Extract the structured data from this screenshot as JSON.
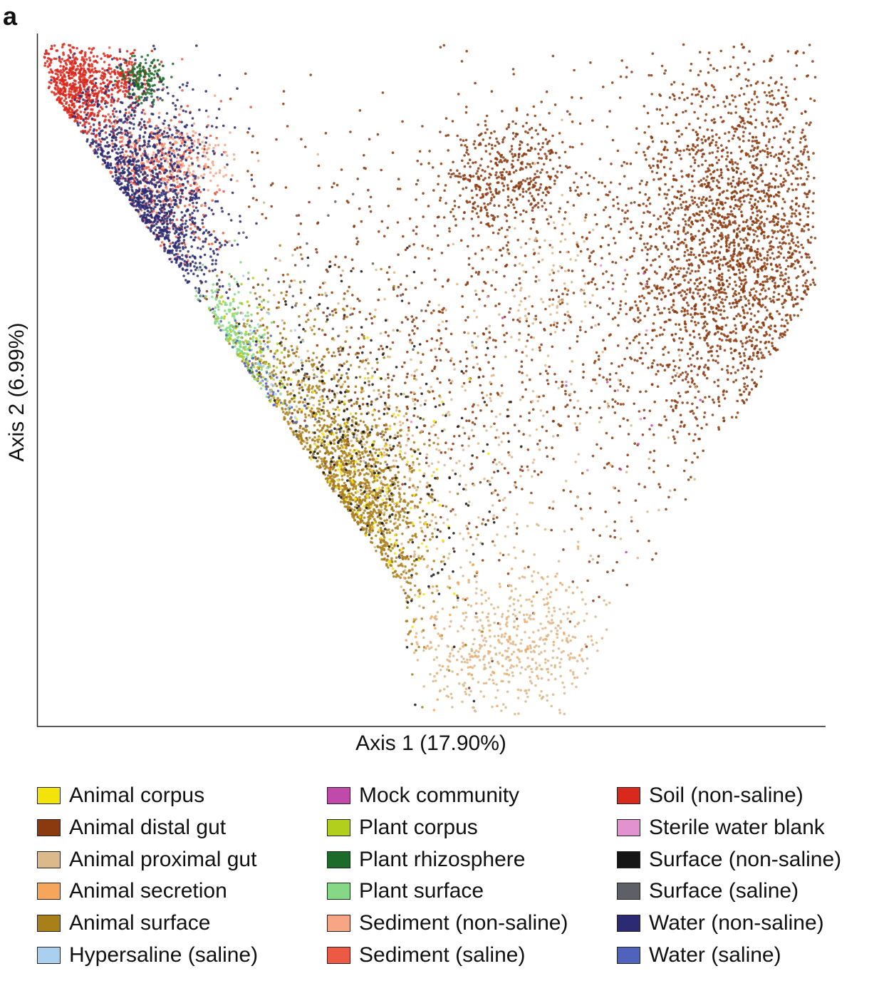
{
  "panel_label": "a",
  "chart_data": {
    "type": "scatter",
    "title": "",
    "xlabel": "Axis 1 (17.90%)",
    "ylabel": "Axis 2 (6.99%)",
    "xlim": [
      0,
      100
    ],
    "ylim": [
      0,
      100
    ],
    "grid": false,
    "legend_position": "bottom",
    "legend": [
      {
        "name": "Animal corpus",
        "color": "#f2e40a"
      },
      {
        "name": "Animal distal gut",
        "color": "#8b3a0f"
      },
      {
        "name": "Animal proximal gut",
        "color": "#dcb98a"
      },
      {
        "name": "Animal secretion",
        "color": "#f6a65a"
      },
      {
        "name": "Animal surface",
        "color": "#a97f1a"
      },
      {
        "name": "Hypersaline (saline)",
        "color": "#a9d0ee"
      },
      {
        "name": "Mock community",
        "color": "#c04aaa"
      },
      {
        "name": "Plant corpus",
        "color": "#b3cf1d"
      },
      {
        "name": "Plant rhizosphere",
        "color": "#1d6b2a"
      },
      {
        "name": "Plant surface",
        "color": "#86d887"
      },
      {
        "name": "Sediment (non-saline)",
        "color": "#f6a585"
      },
      {
        "name": "Sediment (saline)",
        "color": "#ec5a45"
      },
      {
        "name": "Soil (non-saline)",
        "color": "#d9281c"
      },
      {
        "name": "Sterile water blank",
        "color": "#e093cf"
      },
      {
        "name": "Surface (non-saline)",
        "color": "#151515"
      },
      {
        "name": "Surface (saline)",
        "color": "#5e5f67"
      },
      {
        "name": "Water (non-saline)",
        "color": "#2b2a72"
      },
      {
        "name": "Water (saline)",
        "color": "#4f63bd"
      }
    ],
    "clusters": [
      {
        "series": "Animal distal gut",
        "center": [
          90,
          69
        ],
        "spread": [
          8,
          14
        ],
        "n": 2400
      },
      {
        "series": "Animal distal gut",
        "center": [
          60,
          80
        ],
        "spread": [
          4,
          4
        ],
        "n": 450
      },
      {
        "series": "Animal distal gut",
        "center": [
          57,
          55
        ],
        "spread": [
          20,
          17
        ],
        "n": 1100
      },
      {
        "series": "Animal proximal gut",
        "center": [
          61,
          10
        ],
        "spread": [
          6,
          5
        ],
        "n": 450
      },
      {
        "series": "Animal proximal gut",
        "center": [
          43,
          35
        ],
        "spread": [
          16,
          15
        ],
        "n": 500
      },
      {
        "series": "Animal proximal gut",
        "center": [
          66,
          65
        ],
        "spread": [
          4,
          5
        ],
        "n": 80
      },
      {
        "series": "Animal surface",
        "center": [
          38,
          27
        ],
        "spread": [
          5,
          9
        ],
        "n": 1100
      },
      {
        "series": "Animal surface",
        "center": [
          30,
          44
        ],
        "spread": [
          6,
          9
        ],
        "n": 400
      },
      {
        "series": "Soil (non-saline)",
        "center": [
          4.5,
          92
        ],
        "spread": [
          2.5,
          4
        ],
        "n": 650
      },
      {
        "series": "Soil (non-saline)",
        "center": [
          11,
          94
        ],
        "spread": [
          1.8,
          2
        ],
        "n": 170
      },
      {
        "series": "Sediment (saline)",
        "center": [
          14,
          78
        ],
        "spread": [
          4,
          6
        ],
        "n": 420
      },
      {
        "series": "Sediment (non-saline)",
        "center": [
          18,
          82
        ],
        "spread": [
          4,
          3
        ],
        "n": 200
      },
      {
        "series": "Plant rhizosphere",
        "center": [
          13,
          94
        ],
        "spread": [
          1.3,
          1.6
        ],
        "n": 160
      },
      {
        "series": "Water (non-saline)",
        "center": [
          11,
          70
        ],
        "spread": [
          5,
          10
        ],
        "n": 1300
      },
      {
        "series": "Plant surface",
        "center": [
          22,
          51
        ],
        "spread": [
          3,
          5
        ],
        "n": 330
      },
      {
        "series": "Water (saline)",
        "center": [
          23,
          45
        ],
        "spread": [
          3,
          4
        ],
        "n": 260
      },
      {
        "series": "Plant corpus",
        "center": [
          25,
          48
        ],
        "spread": [
          3,
          6
        ],
        "n": 90
      },
      {
        "series": "Animal corpus",
        "center": [
          37,
          30
        ],
        "spread": [
          7,
          9
        ],
        "n": 130
      },
      {
        "series": "Animal secretion",
        "center": [
          58,
          14
        ],
        "spread": [
          7,
          6
        ],
        "n": 80
      },
      {
        "series": "Surface (non-saline)",
        "center": [
          37,
          35
        ],
        "spread": [
          9,
          14
        ],
        "n": 260
      },
      {
        "series": "Surface (saline)",
        "center": [
          30,
          50
        ],
        "spread": [
          9,
          12
        ],
        "n": 60
      },
      {
        "series": "Hypersaline (saline)",
        "center": [
          22,
          50
        ],
        "spread": [
          5,
          6
        ],
        "n": 40
      },
      {
        "series": "Mock community",
        "center": [
          73,
          49
        ],
        "spread": [
          8,
          10
        ],
        "n": 10
      },
      {
        "series": "Sterile water blank",
        "center": [
          70,
          55
        ],
        "spread": [
          10,
          10
        ],
        "n": 10
      }
    ]
  }
}
